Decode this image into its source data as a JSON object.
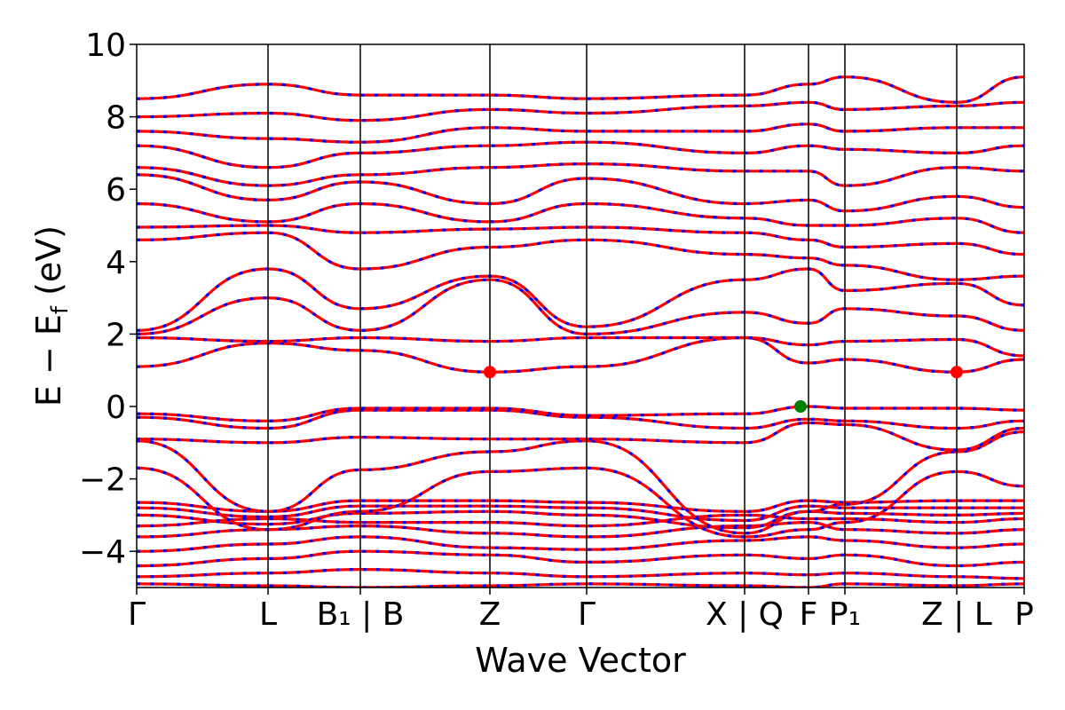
{
  "chart_data": {
    "type": "line",
    "xlabel": "Wave Vector",
    "ylabel": "E − E_f (eV)",
    "ylabel_parts": {
      "main": "E − E",
      "sub": "f",
      "unit": " (eV)"
    },
    "ylim": [
      -5,
      10
    ],
    "yticks": [
      {
        "value": -4,
        "label": "−4"
      },
      {
        "value": -2,
        "label": "−2"
      },
      {
        "value": 0,
        "label": "0"
      },
      {
        "value": 2,
        "label": "2"
      },
      {
        "value": 4,
        "label": "4"
      },
      {
        "value": 6,
        "label": "6"
      },
      {
        "value": 8,
        "label": "8"
      },
      {
        "value": 10,
        "label": "10"
      }
    ],
    "high_symmetry_points": [
      {
        "label": "Γ",
        "pos": 0.0
      },
      {
        "label": "L",
        "pos": 0.148
      },
      {
        "label": "B₁ | B",
        "pos": 0.252
      },
      {
        "label": "Z",
        "pos": 0.398
      },
      {
        "label": "Γ",
        "pos": 0.507
      },
      {
        "label": "X | Q",
        "pos": 0.685
      },
      {
        "label": "F",
        "pos": 0.757
      },
      {
        "label": "P₁",
        "pos": 0.798
      },
      {
        "label": "Z | L",
        "pos": 0.924
      },
      {
        "label": "P",
        "pos": 1.0
      }
    ],
    "band_colors": {
      "primary": "#ff0000",
      "secondary": "#0000ff"
    },
    "markers": [
      {
        "name": "CBM",
        "pos": 0.398,
        "energy": 0.95,
        "color": "#ff0000"
      },
      {
        "name": "CBM",
        "pos": 0.924,
        "energy": 0.95,
        "color": "#ff0000"
      },
      {
        "name": "VBM",
        "pos": 0.748,
        "energy": 0.0,
        "color": "#008000"
      }
    ],
    "bands": [
      {
        "k": [
          0,
          0.148,
          0.252,
          0.398,
          0.507,
          0.685,
          0.757,
          0.798,
          0.924,
          1.0
        ],
        "e": [
          -4.9,
          -4.95,
          -5.0,
          -4.95,
          -4.9,
          -4.95,
          -5.0,
          -4.9,
          -4.95,
          -4.9
        ]
      },
      {
        "k": [
          0,
          0.148,
          0.252,
          0.398,
          0.507,
          0.685,
          0.757,
          0.798,
          0.924,
          1.0
        ],
        "e": [
          -4.7,
          -4.6,
          -4.5,
          -4.6,
          -4.7,
          -4.6,
          -4.65,
          -4.6,
          -4.7,
          -4.75
        ]
      },
      {
        "k": [
          0,
          0.148,
          0.252,
          0.398,
          0.507,
          0.685,
          0.757,
          0.798,
          0.924,
          1.0
        ],
        "e": [
          -4.4,
          -4.2,
          -4.0,
          -4.1,
          -4.3,
          -4.1,
          -4.2,
          -4.1,
          -4.4,
          -4.3
        ]
      },
      {
        "k": [
          0,
          0.148,
          0.252,
          0.398,
          0.507,
          0.685,
          0.757,
          0.798,
          0.924,
          1.0
        ],
        "e": [
          -4.0,
          -3.8,
          -3.6,
          -3.9,
          -3.95,
          -3.7,
          -3.6,
          -3.7,
          -3.9,
          -3.8
        ]
      },
      {
        "k": [
          0,
          0.148,
          0.252,
          0.398,
          0.507,
          0.685,
          0.757,
          0.798,
          0.924,
          1.0
        ],
        "e": [
          -3.6,
          -3.4,
          -3.3,
          -3.5,
          -3.6,
          -3.3,
          -3.2,
          -3.4,
          -3.5,
          -3.4
        ]
      },
      {
        "k": [
          0,
          0.148,
          0.252,
          0.398,
          0.507,
          0.685,
          0.757,
          0.798,
          0.924,
          1.0
        ],
        "e": [
          -3.3,
          -3.1,
          -3.2,
          -3.2,
          -3.3,
          -3.0,
          -3.1,
          -3.1,
          -3.2,
          -3.1
        ]
      },
      {
        "k": [
          0,
          0.148,
          0.252,
          0.398,
          0.507,
          0.685,
          0.757,
          0.798,
          0.924,
          1.0
        ],
        "e": [
          -3.0,
          -3.25,
          -2.95,
          -2.9,
          -3.0,
          -3.35,
          -2.9,
          -2.95,
          -3.0,
          -2.95
        ]
      },
      {
        "k": [
          0,
          0.148,
          0.252,
          0.398,
          0.507,
          0.685,
          0.757,
          0.798,
          0.924,
          1.0
        ],
        "e": [
          -2.8,
          -3.05,
          -2.75,
          -2.75,
          -2.8,
          -3.15,
          -2.75,
          -2.8,
          -2.8,
          -2.8
        ]
      },
      {
        "k": [
          0,
          0.148,
          0.252,
          0.398,
          0.507,
          0.685,
          0.757,
          0.798,
          0.924,
          1.0
        ],
        "e": [
          -2.65,
          -2.9,
          -2.6,
          -2.6,
          -2.65,
          -2.9,
          -2.6,
          -2.65,
          -2.6,
          -2.6
        ]
      },
      {
        "k": [
          0,
          0.148,
          0.252,
          0.398,
          0.507,
          0.685,
          0.757,
          0.798,
          0.924,
          1.0
        ],
        "e": [
          -1.7,
          -3.4,
          -2.9,
          -1.8,
          -1.7,
          -3.6,
          -3.4,
          -3.2,
          -1.8,
          -2.2
        ]
      },
      {
        "k": [
          0,
          0.148,
          0.252,
          0.398,
          0.507,
          0.685,
          0.757,
          0.798,
          0.924,
          1.0
        ],
        "e": [
          -0.95,
          -2.9,
          -1.75,
          -1.25,
          -0.95,
          -3.5,
          -2.9,
          -2.7,
          -1.25,
          -0.7
        ]
      },
      {
        "k": [
          0,
          0.148,
          0.252,
          0.398,
          0.507,
          0.685,
          0.757,
          0.798,
          0.924,
          1.0
        ],
        "e": [
          -0.9,
          -1.0,
          -0.85,
          -0.9,
          -0.9,
          -1.0,
          -0.45,
          -0.5,
          -1.2,
          -0.6
        ]
      },
      {
        "k": [
          0,
          0.148,
          0.252,
          0.398,
          0.507,
          0.685,
          0.757,
          0.798,
          0.924,
          1.0
        ],
        "e": [
          -0.3,
          -0.6,
          -0.1,
          -0.1,
          -0.3,
          -0.6,
          -0.35,
          -0.4,
          -0.6,
          -0.4
        ]
      },
      {
        "k": [
          0,
          0.148,
          0.252,
          0.398,
          0.507,
          0.685,
          0.757,
          0.798,
          0.924,
          1.0
        ],
        "e": [
          -0.2,
          -0.4,
          -0.05,
          -0.05,
          -0.25,
          -0.2,
          0.0,
          -0.05,
          -0.05,
          -0.1
        ]
      },
      {
        "k": [
          0,
          0.148,
          0.252,
          0.398,
          0.507,
          0.685,
          0.757,
          0.798,
          0.924,
          1.0
        ],
        "e": [
          1.1,
          1.75,
          1.55,
          0.95,
          1.1,
          1.9,
          1.2,
          1.3,
          0.95,
          1.3
        ]
      },
      {
        "k": [
          0,
          0.148,
          0.252,
          0.398,
          0.507,
          0.685,
          0.757,
          0.798,
          0.924,
          1.0
        ],
        "e": [
          1.9,
          1.8,
          1.9,
          1.8,
          1.9,
          1.9,
          1.7,
          1.8,
          1.85,
          1.4
        ]
      },
      {
        "k": [
          0,
          0.148,
          0.252,
          0.398,
          0.507,
          0.685,
          0.757,
          0.798,
          0.924,
          1.0
        ],
        "e": [
          2.0,
          3.0,
          2.1,
          3.5,
          2.0,
          2.6,
          2.3,
          2.7,
          2.5,
          2.1
        ]
      },
      {
        "k": [
          0,
          0.148,
          0.252,
          0.398,
          0.507,
          0.685,
          0.757,
          0.798,
          0.924,
          1.0
        ],
        "e": [
          2.1,
          3.8,
          2.7,
          3.6,
          2.2,
          3.5,
          3.8,
          3.2,
          3.4,
          2.8
        ]
      },
      {
        "k": [
          0,
          0.148,
          0.252,
          0.398,
          0.507,
          0.685,
          0.757,
          0.798,
          0.924,
          1.0
        ],
        "e": [
          4.6,
          4.8,
          3.8,
          4.4,
          4.6,
          4.2,
          4.1,
          3.9,
          3.5,
          3.6
        ]
      },
      {
        "k": [
          0,
          0.148,
          0.252,
          0.398,
          0.507,
          0.685,
          0.757,
          0.798,
          0.924,
          1.0
        ],
        "e": [
          4.95,
          5.0,
          4.8,
          4.9,
          4.95,
          4.8,
          4.6,
          4.4,
          4.5,
          4.2
        ]
      },
      {
        "k": [
          0,
          0.148,
          0.252,
          0.398,
          0.507,
          0.685,
          0.757,
          0.798,
          0.924,
          1.0
        ],
        "e": [
          5.6,
          5.1,
          5.6,
          5.1,
          5.6,
          5.2,
          5.0,
          5.0,
          5.2,
          4.8
        ]
      },
      {
        "k": [
          0,
          0.148,
          0.252,
          0.398,
          0.507,
          0.685,
          0.757,
          0.798,
          0.924,
          1.0
        ],
        "e": [
          6.4,
          5.7,
          6.2,
          5.6,
          6.3,
          5.6,
          5.7,
          5.4,
          5.8,
          5.5
        ]
      },
      {
        "k": [
          0,
          0.148,
          0.252,
          0.398,
          0.507,
          0.685,
          0.757,
          0.798,
          0.924,
          1.0
        ],
        "e": [
          6.6,
          6.1,
          6.4,
          6.6,
          6.7,
          6.5,
          6.5,
          6.1,
          6.6,
          6.5
        ]
      },
      {
        "k": [
          0,
          0.148,
          0.252,
          0.398,
          0.507,
          0.685,
          0.757,
          0.798,
          0.924,
          1.0
        ],
        "e": [
          7.2,
          6.6,
          7.0,
          7.2,
          7.3,
          7.0,
          7.2,
          7.1,
          7.0,
          7.2
        ]
      },
      {
        "k": [
          0,
          0.148,
          0.252,
          0.398,
          0.507,
          0.685,
          0.757,
          0.798,
          0.924,
          1.0
        ],
        "e": [
          7.6,
          7.4,
          7.3,
          7.7,
          7.6,
          7.6,
          7.8,
          7.6,
          7.7,
          7.7
        ]
      },
      {
        "k": [
          0,
          0.148,
          0.252,
          0.398,
          0.507,
          0.685,
          0.757,
          0.798,
          0.924,
          1.0
        ],
        "e": [
          8.0,
          8.1,
          7.9,
          8.2,
          8.1,
          8.3,
          8.4,
          8.2,
          8.3,
          8.4
        ]
      },
      {
        "k": [
          0,
          0.148,
          0.252,
          0.398,
          0.507,
          0.685,
          0.757,
          0.798,
          0.924,
          1.0
        ],
        "e": [
          8.5,
          8.9,
          8.6,
          8.6,
          8.5,
          8.6,
          8.9,
          9.1,
          8.4,
          9.1
        ]
      }
    ]
  }
}
